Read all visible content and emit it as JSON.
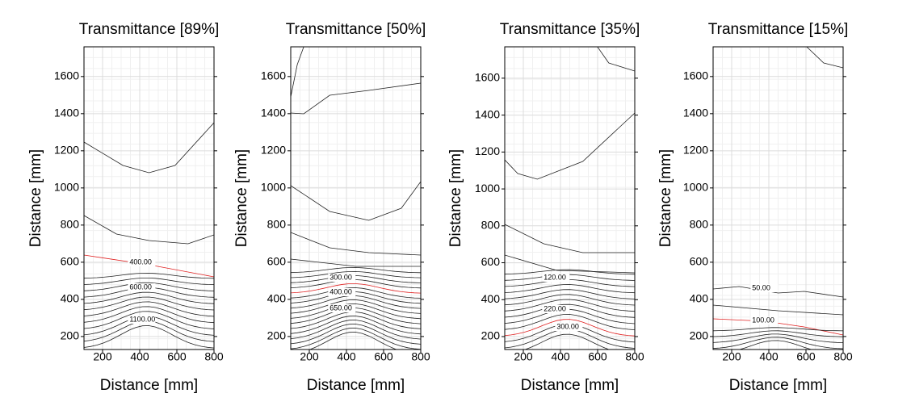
{
  "chart_data": [
    {
      "type": "contour",
      "title": "Transmittance [89%]",
      "xlabel": "Distance [mm]",
      "ylabel": "Distance [mm]",
      "xlim": [
        100,
        800
      ],
      "ylim": [
        130,
        1760
      ],
      "xticks": [
        200,
        400,
        600,
        800
      ],
      "yticks": [
        200,
        400,
        600,
        800,
        1000,
        1200,
        1400,
        1600
      ],
      "grid": true,
      "contour_levels": [
        400,
        600,
        1100
      ],
      "value_labels": [
        "400.00",
        "600.00",
        "1100.00"
      ]
    },
    {
      "type": "contour",
      "title": "Transmittance [50%]",
      "xlabel": "Distance [mm]",
      "ylabel": "Distance [mm]",
      "xlim": [
        100,
        800
      ],
      "ylim": [
        130,
        1760
      ],
      "xticks": [
        200,
        400,
        600,
        800
      ],
      "yticks": [
        200,
        400,
        600,
        800,
        1000,
        1200,
        1400,
        1600
      ],
      "grid": true,
      "contour_levels": [
        300,
        400,
        650
      ],
      "value_labels": [
        "300.00",
        "400.00",
        "650.00"
      ]
    },
    {
      "type": "contour",
      "title": "Transmittance [35%]",
      "xlabel": "Distance [mm]",
      "ylabel": "Distance [mm]",
      "xlim": [
        100,
        800
      ],
      "ylim": [
        130,
        1770
      ],
      "xticks": [
        200,
        400,
        600,
        800
      ],
      "yticks": [
        200,
        400,
        600,
        800,
        1000,
        1200,
        1400,
        1600
      ],
      "grid": true,
      "contour_levels": [
        120,
        220,
        300
      ],
      "value_labels": [
        "120.00",
        "220.00",
        "300.00"
      ]
    },
    {
      "type": "contour",
      "title": "Transmittance [15%]",
      "xlabel": "Distance [mm]",
      "ylabel": "Distance [mm]",
      "xlim": [
        100,
        800
      ],
      "ylim": [
        130,
        1760
      ],
      "xticks": [
        200,
        400,
        600,
        800
      ],
      "yticks": [
        200,
        400,
        600,
        800,
        1000,
        1200,
        1400,
        1600
      ],
      "grid": true,
      "contour_levels": [
        50,
        100
      ],
      "value_labels": [
        "50.00",
        "100.00"
      ]
    }
  ]
}
